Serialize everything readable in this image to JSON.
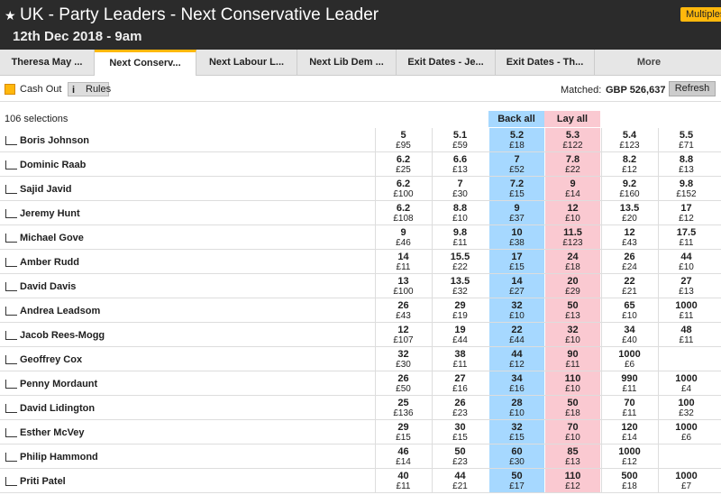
{
  "header": {
    "title": "UK - Party Leaders - Next Conservative Leader",
    "subtitle": "12th Dec 2018 - 9am",
    "multiples": "Multiples"
  },
  "tabs": [
    "Theresa May ...",
    "Next Conserv...",
    "Next Labour L...",
    "Next Lib Dem ...",
    "Exit Dates - Je...",
    "Exit Dates - Th...",
    "More"
  ],
  "toolbar": {
    "cash_out": "Cash Out",
    "rules": "Rules",
    "matched_label": "Matched:",
    "matched_value": "GBP 526,637",
    "refresh": "Refresh"
  },
  "market": {
    "selections": "106 selections",
    "back_all": "Back all",
    "lay_all": "Lay all",
    "runners": [
      {
        "name": "Boris Johnson",
        "prices": [
          {
            "price": "5",
            "amount": "£95"
          },
          {
            "price": "5.1",
            "amount": "£59"
          },
          {
            "price": "5.2",
            "amount": "£18"
          },
          {
            "price": "5.3",
            "amount": "£122"
          },
          {
            "price": "5.4",
            "amount": "£123"
          },
          {
            "price": "5.5",
            "amount": "£71"
          }
        ]
      },
      {
        "name": "Dominic Raab",
        "prices": [
          {
            "price": "6.2",
            "amount": "£25"
          },
          {
            "price": "6.6",
            "amount": "£13"
          },
          {
            "price": "7",
            "amount": "£52"
          },
          {
            "price": "7.8",
            "amount": "£22"
          },
          {
            "price": "8.2",
            "amount": "£12"
          },
          {
            "price": "8.8",
            "amount": "£13"
          }
        ]
      },
      {
        "name": "Sajid Javid",
        "prices": [
          {
            "price": "6.2",
            "amount": "£100"
          },
          {
            "price": "7",
            "amount": "£30"
          },
          {
            "price": "7.2",
            "amount": "£15"
          },
          {
            "price": "9",
            "amount": "£14"
          },
          {
            "price": "9.2",
            "amount": "£160"
          },
          {
            "price": "9.8",
            "amount": "£152"
          }
        ]
      },
      {
        "name": "Jeremy Hunt",
        "prices": [
          {
            "price": "6.2",
            "amount": "£108"
          },
          {
            "price": "8.8",
            "amount": "£10"
          },
          {
            "price": "9",
            "amount": "£37"
          },
          {
            "price": "12",
            "amount": "£10"
          },
          {
            "price": "13.5",
            "amount": "£20"
          },
          {
            "price": "17",
            "amount": "£12"
          }
        ]
      },
      {
        "name": "Michael Gove",
        "prices": [
          {
            "price": "9",
            "amount": "£46"
          },
          {
            "price": "9.8",
            "amount": "£11"
          },
          {
            "price": "10",
            "amount": "£38"
          },
          {
            "price": "11.5",
            "amount": "£123"
          },
          {
            "price": "12",
            "amount": "£43"
          },
          {
            "price": "17.5",
            "amount": "£11"
          }
        ]
      },
      {
        "name": "Amber Rudd",
        "prices": [
          {
            "price": "14",
            "amount": "£11"
          },
          {
            "price": "15.5",
            "amount": "£22"
          },
          {
            "price": "17",
            "amount": "£15"
          },
          {
            "price": "24",
            "amount": "£18"
          },
          {
            "price": "26",
            "amount": "£24"
          },
          {
            "price": "44",
            "amount": "£10"
          }
        ]
      },
      {
        "name": "David Davis",
        "prices": [
          {
            "price": "13",
            "amount": "£100"
          },
          {
            "price": "13.5",
            "amount": "£32"
          },
          {
            "price": "14",
            "amount": "£27"
          },
          {
            "price": "20",
            "amount": "£29"
          },
          {
            "price": "22",
            "amount": "£21"
          },
          {
            "price": "27",
            "amount": "£13"
          }
        ]
      },
      {
        "name": "Andrea Leadsom",
        "prices": [
          {
            "price": "26",
            "amount": "£43"
          },
          {
            "price": "29",
            "amount": "£19"
          },
          {
            "price": "32",
            "amount": "£10"
          },
          {
            "price": "50",
            "amount": "£13"
          },
          {
            "price": "65",
            "amount": "£10"
          },
          {
            "price": "1000",
            "amount": "£11"
          }
        ]
      },
      {
        "name": "Jacob Rees-Mogg",
        "prices": [
          {
            "price": "12",
            "amount": "£107"
          },
          {
            "price": "19",
            "amount": "£44"
          },
          {
            "price": "22",
            "amount": "£44"
          },
          {
            "price": "32",
            "amount": "£10"
          },
          {
            "price": "34",
            "amount": "£40"
          },
          {
            "price": "48",
            "amount": "£11"
          }
        ]
      },
      {
        "name": "Geoffrey Cox",
        "prices": [
          {
            "price": "32",
            "amount": "£30"
          },
          {
            "price": "38",
            "amount": "£11"
          },
          {
            "price": "44",
            "amount": "£12"
          },
          {
            "price": "90",
            "amount": "£11"
          },
          {
            "price": "1000",
            "amount": "£6"
          },
          null
        ]
      },
      {
        "name": "Penny Mordaunt",
        "prices": [
          {
            "price": "26",
            "amount": "£50"
          },
          {
            "price": "27",
            "amount": "£16"
          },
          {
            "price": "34",
            "amount": "£16"
          },
          {
            "price": "110",
            "amount": "£10"
          },
          {
            "price": "990",
            "amount": "£11"
          },
          {
            "price": "1000",
            "amount": "£4"
          }
        ]
      },
      {
        "name": "David Lidington",
        "prices": [
          {
            "price": "25",
            "amount": "£136"
          },
          {
            "price": "26",
            "amount": "£23"
          },
          {
            "price": "28",
            "amount": "£10"
          },
          {
            "price": "50",
            "amount": "£18"
          },
          {
            "price": "70",
            "amount": "£11"
          },
          {
            "price": "100",
            "amount": "£32"
          }
        ]
      },
      {
        "name": "Esther McVey",
        "prices": [
          {
            "price": "29",
            "amount": "£15"
          },
          {
            "price": "30",
            "amount": "£15"
          },
          {
            "price": "32",
            "amount": "£15"
          },
          {
            "price": "70",
            "amount": "£10"
          },
          {
            "price": "120",
            "amount": "£14"
          },
          {
            "price": "1000",
            "amount": "£6"
          }
        ]
      },
      {
        "name": "Philip Hammond",
        "prices": [
          {
            "price": "46",
            "amount": "£14"
          },
          {
            "price": "50",
            "amount": "£23"
          },
          {
            "price": "60",
            "amount": "£30"
          },
          {
            "price": "85",
            "amount": "£13"
          },
          {
            "price": "1000",
            "amount": "£12"
          },
          null
        ]
      },
      {
        "name": "Priti Patel",
        "prices": [
          {
            "price": "40",
            "amount": "£11"
          },
          {
            "price": "44",
            "amount": "£21"
          },
          {
            "price": "50",
            "amount": "£17"
          },
          {
            "price": "110",
            "amount": "£12"
          },
          {
            "price": "500",
            "amount": "£18"
          },
          {
            "price": "1000",
            "amount": "£7"
          }
        ]
      }
    ]
  }
}
